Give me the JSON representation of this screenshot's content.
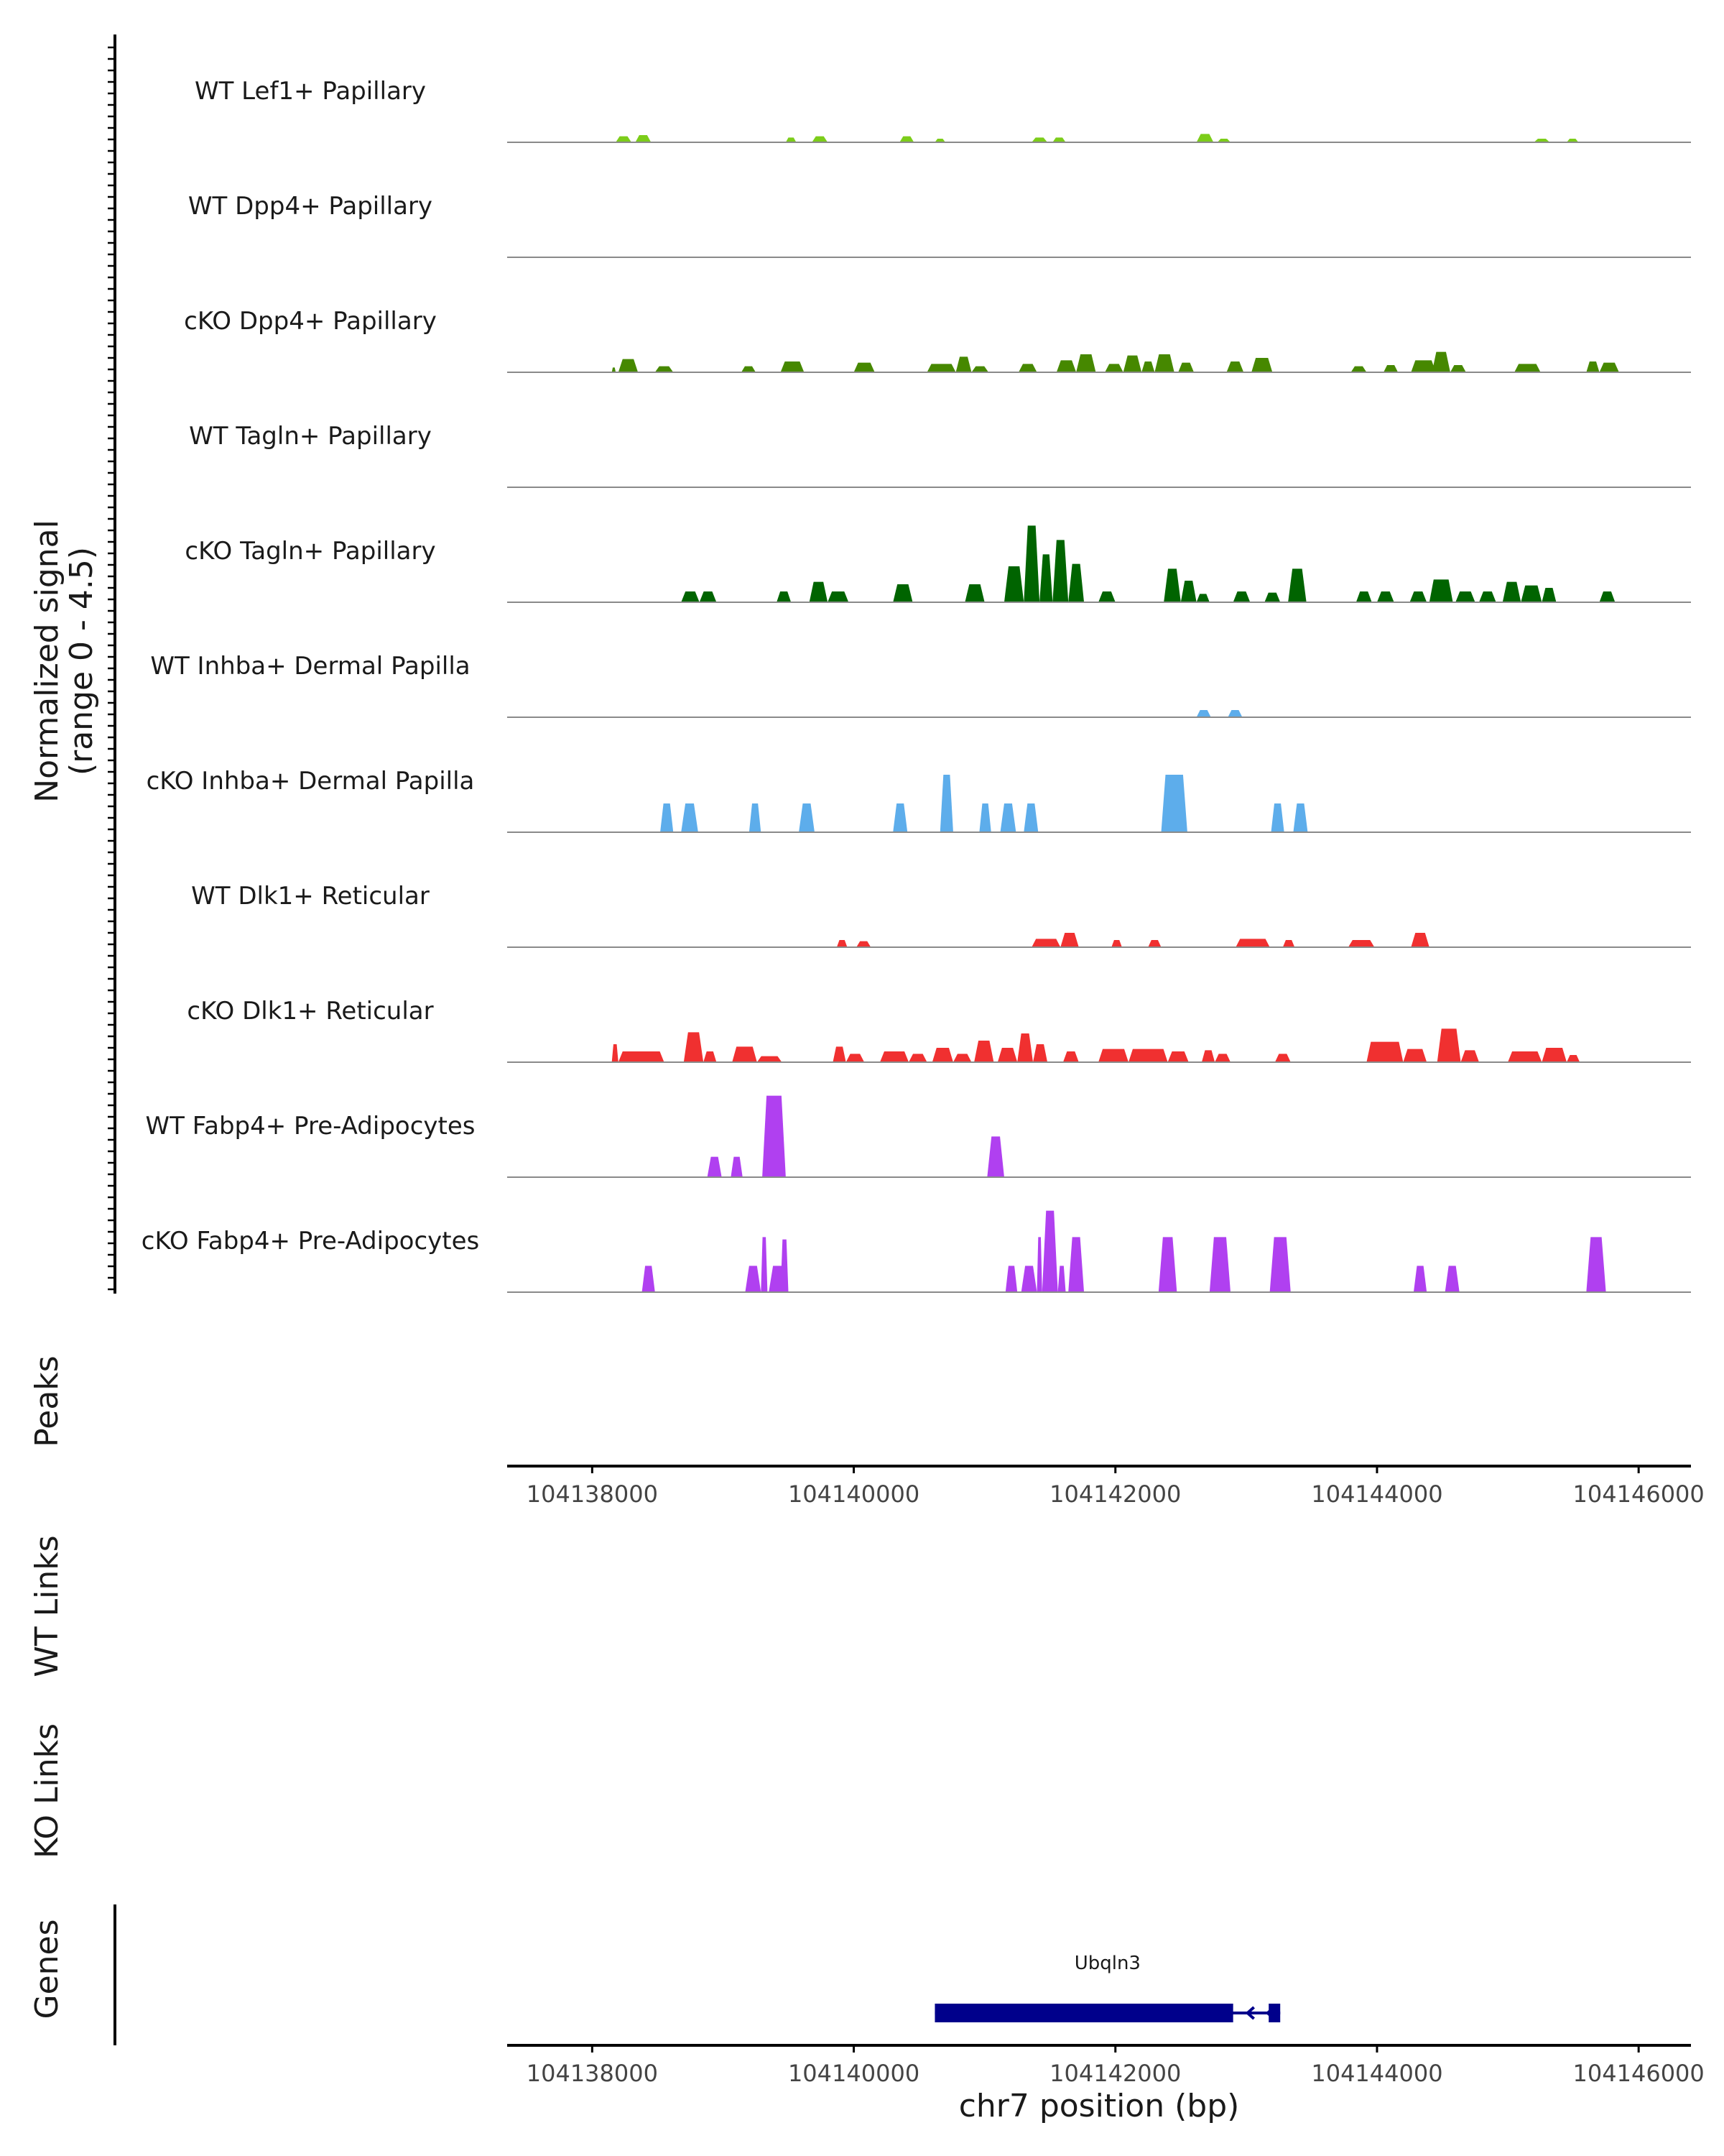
{
  "chart_data": {
    "type": "area",
    "title": "",
    "ylabel_line1": "Normalized signal",
    "ylabel_line2": "(range 0 - 4.5)",
    "ylim": [
      0,
      4.5
    ],
    "xlabel": "chr7 position (bp)",
    "xlim": [
      104137350,
      104146400
    ],
    "xticks": [
      104138000,
      104140000,
      104142000,
      104144000,
      104146000
    ],
    "xtick_labels": [
      "104138000",
      "104140000",
      "104142000",
      "104144000",
      "104146000"
    ],
    "tracks": [
      {
        "name": "WT Lef1+ Papillary",
        "color": "#7CCD1A",
        "peaks": [
          [
            104138180,
            104138300,
            0.25
          ],
          [
            104138330,
            104138450,
            0.3
          ],
          [
            104139480,
            104139560,
            0.2
          ],
          [
            104139680,
            104139800,
            0.25
          ],
          [
            104140350,
            104140460,
            0.25
          ],
          [
            104140620,
            104140700,
            0.15
          ],
          [
            104141360,
            104141480,
            0.2
          ],
          [
            104141520,
            104141620,
            0.2
          ],
          [
            104142620,
            104142750,
            0.35
          ],
          [
            104142780,
            104142880,
            0.15
          ],
          [
            104145200,
            104145320,
            0.15
          ],
          [
            104145450,
            104145540,
            0.15
          ]
        ]
      },
      {
        "name": "WT Dpp4+ Papillary",
        "color": "#5A8A00",
        "peaks": []
      },
      {
        "name": "cKO Dpp4+ Papillary",
        "color": "#468800",
        "peaks": [
          [
            104138150,
            104138180,
            0.2
          ],
          [
            104138200,
            104138350,
            0.55
          ],
          [
            104138480,
            104138620,
            0.25
          ],
          [
            104139140,
            104139250,
            0.25
          ],
          [
            104139440,
            104139620,
            0.45
          ],
          [
            104140000,
            104140160,
            0.4
          ],
          [
            104140560,
            104140780,
            0.35
          ],
          [
            104140780,
            104140900,
            0.65
          ],
          [
            104140900,
            104141030,
            0.25
          ],
          [
            104141260,
            104141400,
            0.35
          ],
          [
            104141550,
            104141700,
            0.5
          ],
          [
            104141700,
            104141850,
            0.75
          ],
          [
            104141920,
            104142060,
            0.35
          ],
          [
            104142060,
            104142200,
            0.7
          ],
          [
            104142200,
            104142300,
            0.45
          ],
          [
            104142300,
            104142450,
            0.75
          ],
          [
            104142480,
            104142600,
            0.4
          ],
          [
            104142850,
            104142980,
            0.45
          ],
          [
            104143040,
            104143200,
            0.6
          ],
          [
            104143800,
            104143920,
            0.25
          ],
          [
            104144050,
            104144160,
            0.3
          ],
          [
            104144260,
            104144450,
            0.5
          ],
          [
            104144420,
            104144560,
            0.85
          ],
          [
            104144560,
            104144680,
            0.3
          ],
          [
            104145050,
            104145250,
            0.35
          ],
          [
            104145600,
            104145700,
            0.45
          ],
          [
            104145700,
            104145850,
            0.4
          ]
        ]
      },
      {
        "name": "WT Tagln+ Papillary",
        "color": "#1E6B00",
        "peaks": []
      },
      {
        "name": "cKO Tagln+ Papillary",
        "color": "#006400",
        "peaks": [
          [
            104138680,
            104138820,
            0.45
          ],
          [
            104138820,
            104138950,
            0.45
          ],
          [
            104139410,
            104139520,
            0.45
          ],
          [
            104139660,
            104139800,
            0.85
          ],
          [
            104139800,
            104139960,
            0.45
          ],
          [
            104140300,
            104140450,
            0.75
          ],
          [
            104140850,
            104141000,
            0.75
          ],
          [
            104141150,
            104141300,
            1.5
          ],
          [
            104141300,
            104141420,
            3.2
          ],
          [
            104141420,
            104141520,
            2.0
          ],
          [
            104141520,
            104141640,
            2.6
          ],
          [
            104141640,
            104141760,
            1.6
          ],
          [
            104141870,
            104142000,
            0.45
          ],
          [
            104142370,
            104142500,
            1.4
          ],
          [
            104142500,
            104142620,
            0.9
          ],
          [
            104142620,
            104142720,
            0.35
          ],
          [
            104142900,
            104143030,
            0.45
          ],
          [
            104143140,
            104143260,
            0.4
          ],
          [
            104143320,
            104143460,
            1.4
          ],
          [
            104143840,
            104143960,
            0.45
          ],
          [
            104144000,
            104144130,
            0.45
          ],
          [
            104144250,
            104144380,
            0.45
          ],
          [
            104144400,
            104144580,
            0.95
          ],
          [
            104144600,
            104144750,
            0.45
          ],
          [
            104144780,
            104144910,
            0.45
          ],
          [
            104144960,
            104145100,
            0.85
          ],
          [
            104145100,
            104145260,
            0.7
          ],
          [
            104145260,
            104145370,
            0.6
          ],
          [
            104145700,
            104145820,
            0.45
          ]
        ]
      },
      {
        "name": "WT Inhba+ Dermal Papilla",
        "color": "#5DADEB",
        "peaks": [
          [
            104142620,
            104142730,
            0.3
          ],
          [
            104142860,
            104142970,
            0.3
          ]
        ]
      },
      {
        "name": "cKO Inhba+ Dermal Papilla",
        "color": "#5DADEB",
        "peaks": [
          [
            104138520,
            104138620,
            1.2
          ],
          [
            104138680,
            104138810,
            1.2
          ],
          [
            104139200,
            104139290,
            1.2
          ],
          [
            104139580,
            104139700,
            1.2
          ],
          [
            104140300,
            104140410,
            1.2
          ],
          [
            104140660,
            104140760,
            2.4
          ],
          [
            104140960,
            104141050,
            1.2
          ],
          [
            104141120,
            104141240,
            1.2
          ],
          [
            104141300,
            104141410,
            1.2
          ],
          [
            104142350,
            104142550,
            2.4
          ],
          [
            104143190,
            104143290,
            1.2
          ],
          [
            104143360,
            104143470,
            1.2
          ]
        ]
      },
      {
        "name": "WT Dlk1+ Reticular",
        "color": "#F03030",
        "peaks": [
          [
            104139870,
            104139950,
            0.3
          ],
          [
            104140020,
            104140130,
            0.25
          ],
          [
            104141360,
            104141580,
            0.35
          ],
          [
            104141580,
            104141720,
            0.6
          ],
          [
            104141970,
            104142050,
            0.3
          ],
          [
            104142250,
            104142350,
            0.3
          ],
          [
            104142920,
            104143180,
            0.35
          ],
          [
            104143280,
            104143370,
            0.3
          ],
          [
            104143780,
            104143980,
            0.3
          ],
          [
            104144260,
            104144400,
            0.6
          ]
        ]
      },
      {
        "name": "cKO Dlk1+ Reticular",
        "color": "#F03030",
        "peaks": [
          [
            104138150,
            104138200,
            0.75
          ],
          [
            104138200,
            104138550,
            0.45
          ],
          [
            104138700,
            104138850,
            1.25
          ],
          [
            104138850,
            104138950,
            0.45
          ],
          [
            104139070,
            104139260,
            0.65
          ],
          [
            104139260,
            104139450,
            0.25
          ],
          [
            104139840,
            104139940,
            0.65
          ],
          [
            104139940,
            104140080,
            0.35
          ],
          [
            104140200,
            104140420,
            0.45
          ],
          [
            104140420,
            104140560,
            0.35
          ],
          [
            104140600,
            104140760,
            0.6
          ],
          [
            104140760,
            104140900,
            0.35
          ],
          [
            104140920,
            104141070,
            0.9
          ],
          [
            104141100,
            104141250,
            0.6
          ],
          [
            104141250,
            104141370,
            1.2
          ],
          [
            104141370,
            104141480,
            0.75
          ],
          [
            104141600,
            104141720,
            0.45
          ],
          [
            104141870,
            104142100,
            0.55
          ],
          [
            104142100,
            104142400,
            0.55
          ],
          [
            104142400,
            104142560,
            0.45
          ],
          [
            104142660,
            104142760,
            0.5
          ],
          [
            104142760,
            104142880,
            0.35
          ],
          [
            104143220,
            104143340,
            0.35
          ],
          [
            104143920,
            104144200,
            0.85
          ],
          [
            104144200,
            104144380,
            0.55
          ],
          [
            104144460,
            104144640,
            1.4
          ],
          [
            104144640,
            104144780,
            0.5
          ],
          [
            104145000,
            104145260,
            0.45
          ],
          [
            104145260,
            104145450,
            0.6
          ],
          [
            104145450,
            104145550,
            0.3
          ]
        ]
      },
      {
        "name": "WT Fabp4+ Pre-Adipocytes",
        "color": "#B040F0",
        "peaks": [
          [
            104138880,
            104138990,
            0.85
          ],
          [
            104139060,
            104139150,
            0.85
          ],
          [
            104139300,
            104139480,
            3.4
          ],
          [
            104141020,
            104141150,
            1.7
          ]
        ]
      },
      {
        "name": "cKO Fabp4+ Pre-Adipocytes",
        "color": "#B040F0",
        "peaks": [
          [
            104138380,
            104138480,
            1.1
          ],
          [
            104139170,
            104139290,
            1.1
          ],
          [
            104139290,
            104139340,
            2.3
          ],
          [
            104139350,
            104139480,
            1.1
          ],
          [
            104139440,
            104139500,
            2.2
          ],
          [
            104141160,
            104141250,
            1.1
          ],
          [
            104141280,
            104141400,
            1.1
          ],
          [
            104141400,
            104141440,
            2.3
          ],
          [
            104141440,
            104141560,
            3.4
          ],
          [
            104141560,
            104141620,
            1.1
          ],
          [
            104141640,
            104141760,
            2.3
          ],
          [
            104142330,
            104142470,
            2.3
          ],
          [
            104142720,
            104142880,
            2.3
          ],
          [
            104143180,
            104143340,
            2.3
          ],
          [
            104144280,
            104144380,
            1.1
          ],
          [
            104144520,
            104144630,
            1.1
          ],
          [
            104145600,
            104145750,
            2.3
          ]
        ]
      }
    ],
    "panels": {
      "peaks_label": "Peaks",
      "wt_links_label": "WT Links",
      "ko_links_label": "KO Links",
      "genes_label": "Genes"
    },
    "gene": {
      "name": "Ubqln3",
      "start": 104140620,
      "end": 104143260,
      "thick_end": 104142900,
      "strand": "-",
      "color": "#00008B"
    }
  }
}
